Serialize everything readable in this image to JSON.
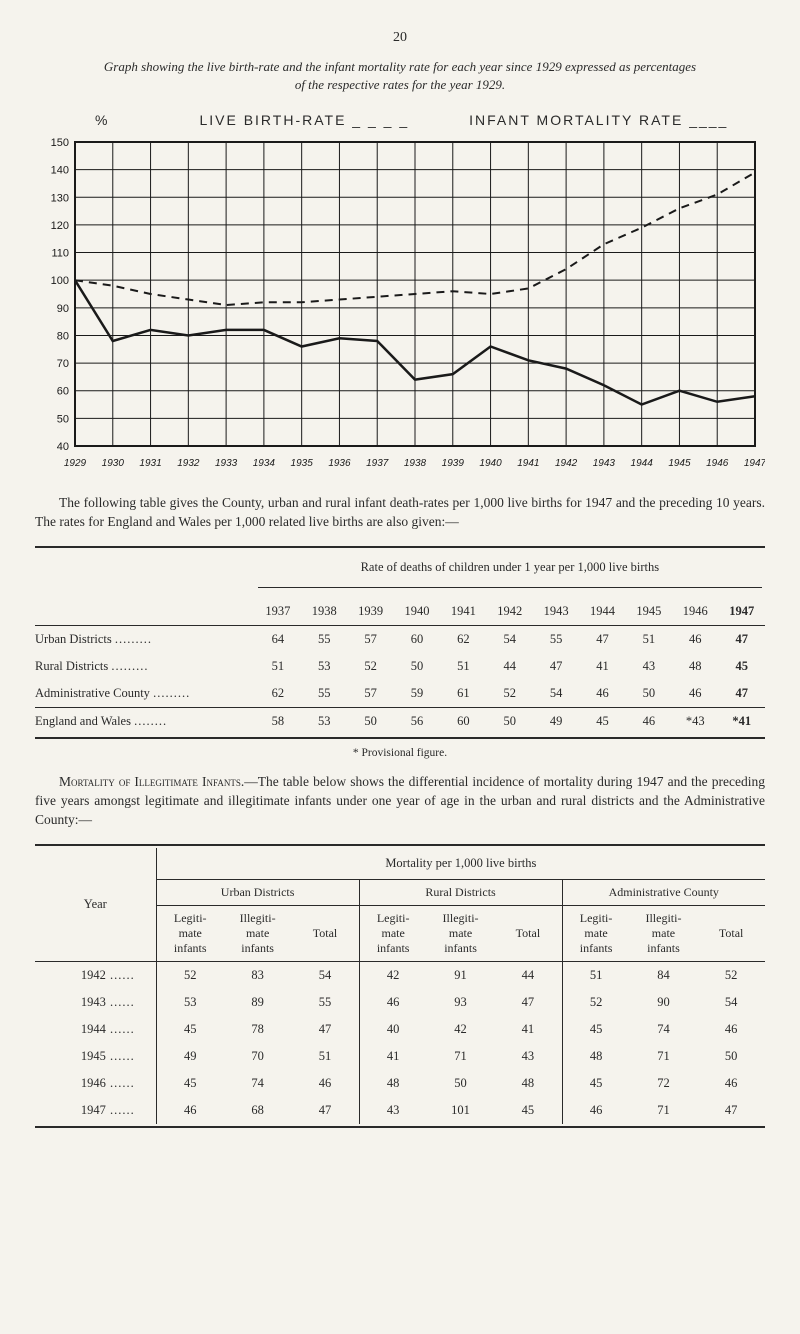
{
  "page_number": "20",
  "graph_caption_line1": "Graph showing the live birth-rate and the infant mortality rate for each year since 1929 expressed as percentages",
  "graph_caption_line2": "of the respective rates for the year 1929.",
  "chart": {
    "pct_label": "%",
    "series1_label": "LIVE BIRTH-RATE",
    "series1_dash": "_ _ _ _",
    "series2_label": "INFANT MORTALITY RATE",
    "series2_dash": "____",
    "y_ticks": [
      150,
      140,
      130,
      120,
      110,
      100,
      90,
      80,
      70,
      60,
      50,
      40
    ],
    "years": [
      "1929",
      "1930",
      "1931",
      "1932",
      "1933",
      "1934",
      "1935",
      "1936",
      "1937",
      "1938",
      "1939",
      "1940",
      "1941",
      "1942",
      "1943",
      "1944",
      "1945",
      "1946",
      "1947"
    ],
    "infant_mortality": [
      100,
      78,
      82,
      80,
      82,
      82,
      76,
      79,
      78,
      64,
      66,
      76,
      71,
      68,
      62,
      55,
      60,
      56,
      58
    ],
    "live_birth_rate": [
      100,
      98,
      95,
      93,
      91,
      92,
      92,
      93,
      94,
      95,
      96,
      95,
      97,
      104,
      113,
      119,
      126,
      131,
      139
    ],
    "line_color": "#1a1a1a",
    "grid_color": "#1a1a1a",
    "bg": "#f5f3ed"
  },
  "para1": "The following table gives the County, urban and rural infant death-rates per 1,000 live births for 1947 and the preceding 10 years. The rates for England and Wales per 1,000 related live births are also given:—",
  "table1": {
    "title": "Rate of deaths of children under 1 year per 1,000 live births",
    "years": [
      "1937",
      "1938",
      "1939",
      "1940",
      "1941",
      "1942",
      "1943",
      "1944",
      "1945",
      "1946",
      "1947"
    ],
    "rows": [
      {
        "label": "Urban Districts",
        "d": [
          "64",
          "55",
          "57",
          "60",
          "62",
          "54",
          "55",
          "47",
          "51",
          "46",
          "47"
        ]
      },
      {
        "label": "Rural Districts",
        "d": [
          "51",
          "53",
          "52",
          "50",
          "51",
          "44",
          "47",
          "41",
          "43",
          "48",
          "45"
        ]
      },
      {
        "label": "Administrative County",
        "d": [
          "62",
          "55",
          "57",
          "59",
          "61",
          "52",
          "54",
          "46",
          "50",
          "46",
          "47"
        ]
      }
    ],
    "england_row": {
      "label": "England and Wales",
      "d": [
        "58",
        "53",
        "50",
        "56",
        "60",
        "50",
        "49",
        "45",
        "46",
        "*43",
        "*41"
      ]
    }
  },
  "footnote": "* Provisional figure.",
  "para2_lead": "Mortality of Illegitimate Infants.",
  "para2_rest": "—The table below shows the differential incidence of mortality during 1947 and the preceding five years amongst legitimate and illegitimate infants under one year of age in the urban and rural districts and the Administrative County:—",
  "table2": {
    "head_main": "Mortality per 1,000 live births",
    "year_label": "Year",
    "groups": [
      "Urban Districts",
      "Rural Districts",
      "Administrative County"
    ],
    "sub": [
      "Legiti-\nmate\ninfants",
      "Illegiti-\nmate\ninfants",
      "Total"
    ],
    "rows": [
      {
        "y": "1942",
        "d": [
          "52",
          "83",
          "54",
          "42",
          "91",
          "44",
          "51",
          "84",
          "52"
        ]
      },
      {
        "y": "1943",
        "d": [
          "53",
          "89",
          "55",
          "46",
          "93",
          "47",
          "52",
          "90",
          "54"
        ]
      },
      {
        "y": "1944",
        "d": [
          "45",
          "78",
          "47",
          "40",
          "42",
          "41",
          "45",
          "74",
          "46"
        ]
      },
      {
        "y": "1945",
        "d": [
          "49",
          "70",
          "51",
          "41",
          "71",
          "43",
          "48",
          "71",
          "50"
        ]
      },
      {
        "y": "1946",
        "d": [
          "45",
          "74",
          "46",
          "48",
          "50",
          "48",
          "45",
          "72",
          "46"
        ]
      },
      {
        "y": "1947",
        "d": [
          "46",
          "68",
          "47",
          "43",
          "101",
          "45",
          "46",
          "71",
          "47"
        ],
        "bold": true
      }
    ]
  }
}
